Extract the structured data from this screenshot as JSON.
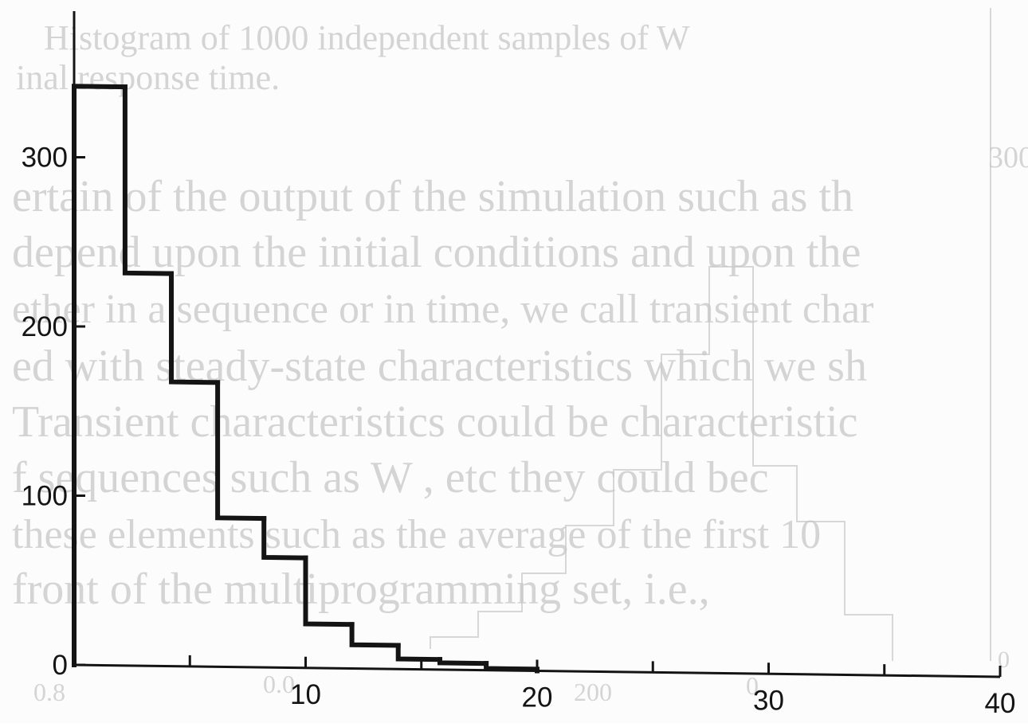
{
  "chart_data": {
    "type": "histogram",
    "title": "",
    "xlabel": "",
    "ylabel": "",
    "xlim": [
      0,
      40
    ],
    "ylim": [
      0,
      370
    ],
    "x_ticks_minor": [
      0,
      5,
      10,
      15,
      20,
      25,
      30,
      35,
      40
    ],
    "x_tick_labels": [
      "10",
      "20",
      "30",
      "40"
    ],
    "y_tick_labels": [
      "0",
      "100",
      "200",
      "300"
    ],
    "bins": [
      {
        "x_start": 0.0,
        "x_end": 2.2,
        "count": 342
      },
      {
        "x_start": 2.2,
        "x_end": 4.2,
        "count": 232
      },
      {
        "x_start": 4.2,
        "x_end": 6.2,
        "count": 168
      },
      {
        "x_start": 6.2,
        "x_end": 8.2,
        "count": 88
      },
      {
        "x_start": 8.2,
        "x_end": 10.0,
        "count": 65
      },
      {
        "x_start": 10.0,
        "x_end": 12.0,
        "count": 26
      },
      {
        "x_start": 12.0,
        "x_end": 14.0,
        "count": 14
      },
      {
        "x_start": 14.0,
        "x_end": 15.8,
        "count": 6
      },
      {
        "x_start": 15.8,
        "x_end": 17.8,
        "count": 4
      },
      {
        "x_start": 17.8,
        "x_end": 20.0,
        "count": 1
      }
    ],
    "grid": false,
    "legend": "none",
    "line_color": "#141414"
  },
  "bleed_through": {
    "lines": [
      "Histogram of 1000 independent samples of W",
      "inal response time.",
      "ertain of the output of the simulation such as th",
      "depend upon the initial conditions and upon the",
      "ether in a sequence or in time, we call transient char",
      "ed with steady-state characteristics which we sh",
      "Transient characteristics could be characteristic",
      "f sequences such as W , etc they could bec",
      "these elements such as the average of the first 10",
      "front of the multiprogramming set, i.e.,"
    ],
    "fragments": [
      "300",
      "0",
      "0.8",
      "0.0",
      "200",
      "0"
    ]
  }
}
